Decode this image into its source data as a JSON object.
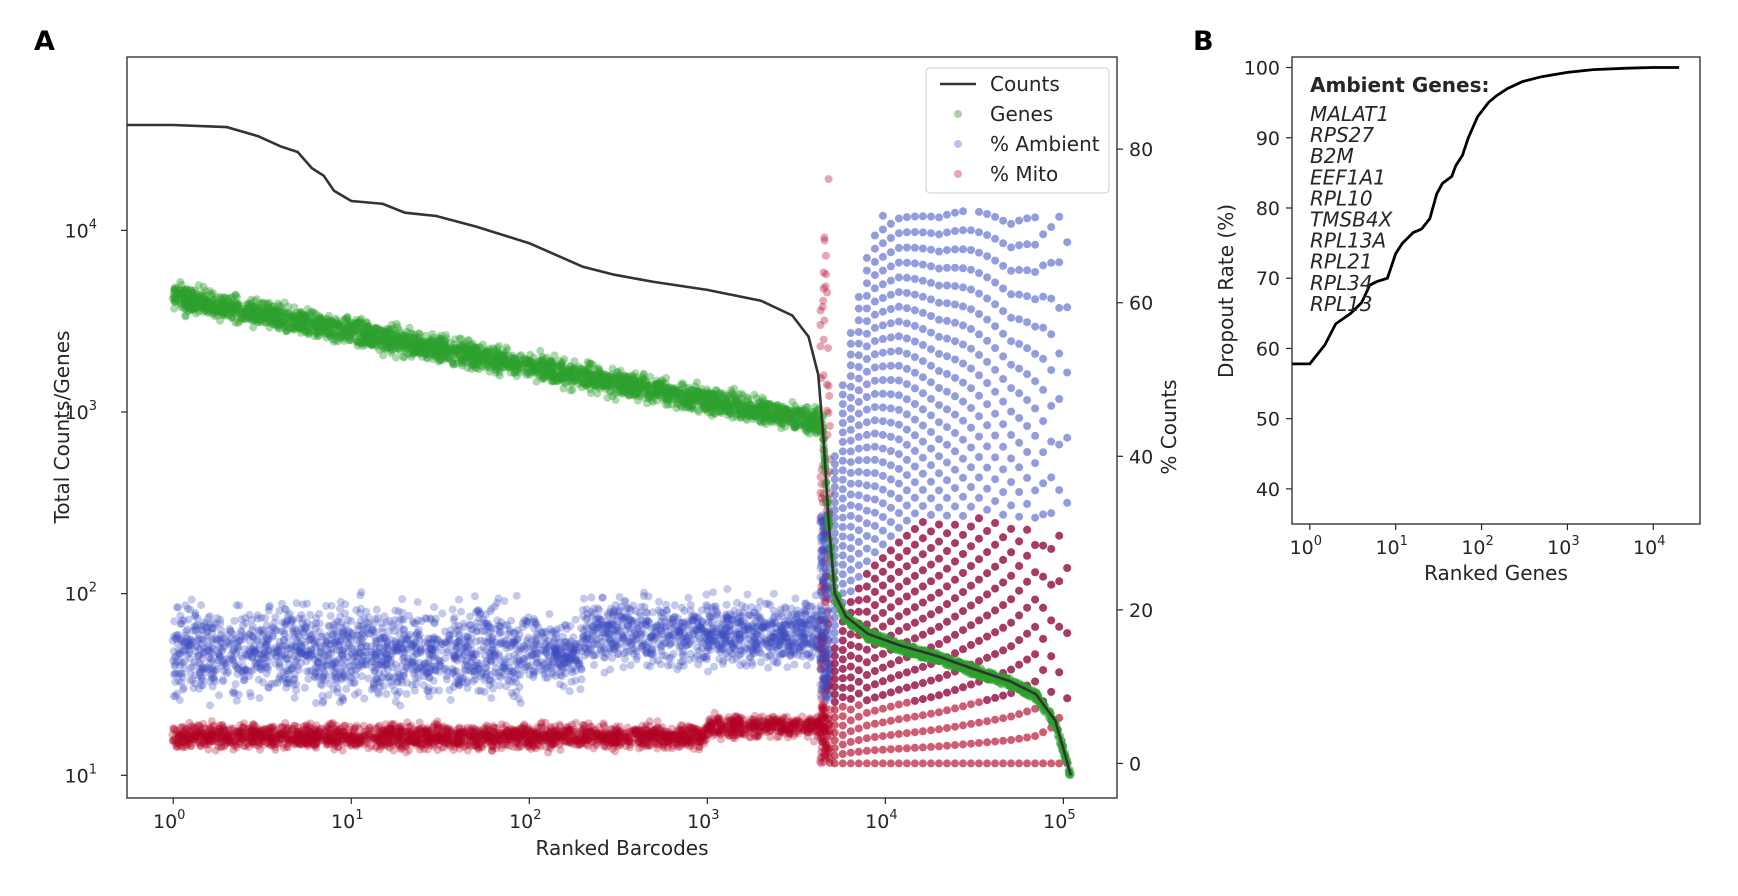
{
  "figure": {
    "panel_a": "A",
    "panel_b": "B"
  },
  "chart_data": [
    {
      "type": "scatter",
      "panel": "A",
      "xlabel": "Ranked Barcodes",
      "ylabel": "Total Counts/Genes",
      "y2label": "% Counts",
      "xscale": "log",
      "yscale": "log",
      "xlim": [
        0.55,
        200000
      ],
      "ylim": [
        7.5,
        90000
      ],
      "y2lim": [
        -4.5,
        92
      ],
      "grid": false,
      "legend_position": "top-right",
      "xticks": [
        {
          "v": 1,
          "e": "0"
        },
        {
          "v": 10,
          "e": "1"
        },
        {
          "v": 100,
          "e": "2"
        },
        {
          "v": 1000,
          "e": "3"
        },
        {
          "v": 10000,
          "e": "4"
        },
        {
          "v": 100000,
          "e": "5"
        }
      ],
      "yticks": [
        {
          "v": 10,
          "e": "1"
        },
        {
          "v": 100,
          "e": "2"
        },
        {
          "v": 1000,
          "e": "3"
        },
        {
          "v": 10000,
          "e": "4"
        }
      ],
      "y2ticks": [
        0,
        20,
        40,
        60,
        80
      ],
      "series": [
        {
          "name": "Counts",
          "kind": "line",
          "axis": "left",
          "color": "#333333",
          "points": [
            [
              0.55,
              38000
            ],
            [
              1,
              38000
            ],
            [
              2,
              37000
            ],
            [
              3,
              33000
            ],
            [
              4,
              29000
            ],
            [
              5,
              27000
            ],
            [
              6,
              22000
            ],
            [
              7,
              20000
            ],
            [
              8,
              16500
            ],
            [
              10,
              14500
            ],
            [
              15,
              14000
            ],
            [
              20,
              12500
            ],
            [
              30,
              12000
            ],
            [
              50,
              10500
            ],
            [
              100,
              8500
            ],
            [
              200,
              6300
            ],
            [
              300,
              5700
            ],
            [
              500,
              5200
            ],
            [
              1000,
              4700
            ],
            [
              2000,
              4100
            ],
            [
              3000,
              3400
            ],
            [
              3700,
              2600
            ],
            [
              4200,
              1600
            ],
            [
              4500,
              700
            ],
            [
              4800,
              250
            ],
            [
              5200,
              100
            ],
            [
              6000,
              75
            ],
            [
              8000,
              60
            ],
            [
              12000,
              52
            ],
            [
              20000,
              45
            ],
            [
              30000,
              39
            ],
            [
              50000,
              33
            ],
            [
              70000,
              28
            ],
            [
              90000,
              20
            ],
            [
              100000,
              14
            ],
            [
              110000,
              10
            ]
          ]
        },
        {
          "name": "Genes",
          "kind": "scatter",
          "axis": "left",
          "color": "#2ca02c"
        },
        {
          "name": "% Ambient",
          "kind": "scatter",
          "axis": "right",
          "color": "#3b4cc0"
        },
        {
          "name": "% Mito",
          "kind": "scatter",
          "axis": "right",
          "color": "#b40426"
        }
      ]
    },
    {
      "type": "line",
      "panel": "B",
      "xlabel": "Ranked Genes",
      "ylabel": "Dropout Rate (%)",
      "xscale": "log",
      "xlim": [
        0.62,
        35000
      ],
      "ylim": [
        35,
        101.5
      ],
      "grid": false,
      "xticks": [
        {
          "v": 1,
          "e": "0"
        },
        {
          "v": 10,
          "e": "1"
        },
        {
          "v": 100,
          "e": "2"
        },
        {
          "v": 1000,
          "e": "3"
        },
        {
          "v": 10000,
          "e": "4"
        }
      ],
      "yticks": [
        40,
        50,
        60,
        70,
        80,
        90,
        100
      ],
      "series": [
        {
          "name": "Dropout",
          "color": "#000000",
          "points": [
            [
              0.62,
              57.8
            ],
            [
              1,
              57.8
            ],
            [
              1.5,
              60.5
            ],
            [
              2,
              63.5
            ],
            [
              3,
              65
            ],
            [
              4,
              66.5
            ],
            [
              5,
              69
            ],
            [
              6,
              69.5
            ],
            [
              8,
              70
            ],
            [
              10,
              73.5
            ],
            [
              12,
              75
            ],
            [
              16,
              76.5
            ],
            [
              20,
              77
            ],
            [
              25,
              78.5
            ],
            [
              30,
              82
            ],
            [
              35,
              83.5
            ],
            [
              45,
              84.5
            ],
            [
              50,
              86
            ],
            [
              60,
              87.5
            ],
            [
              70,
              90
            ],
            [
              90,
              93
            ],
            [
              120,
              95
            ],
            [
              150,
              96
            ],
            [
              200,
              97
            ],
            [
              300,
              98
            ],
            [
              500,
              98.7
            ],
            [
              1000,
              99.3
            ],
            [
              2000,
              99.7
            ],
            [
              5000,
              99.9
            ],
            [
              10000,
              100
            ],
            [
              20000,
              100
            ]
          ]
        }
      ],
      "annotation_title": "Ambient Genes:",
      "annotation_items": [
        "MALAT1",
        "RPS27",
        "B2M",
        "EEF1A1",
        "RPL10",
        "TMSB4X",
        "RPL13A",
        "RPL21",
        "RPL34",
        "RPL13"
      ]
    }
  ]
}
